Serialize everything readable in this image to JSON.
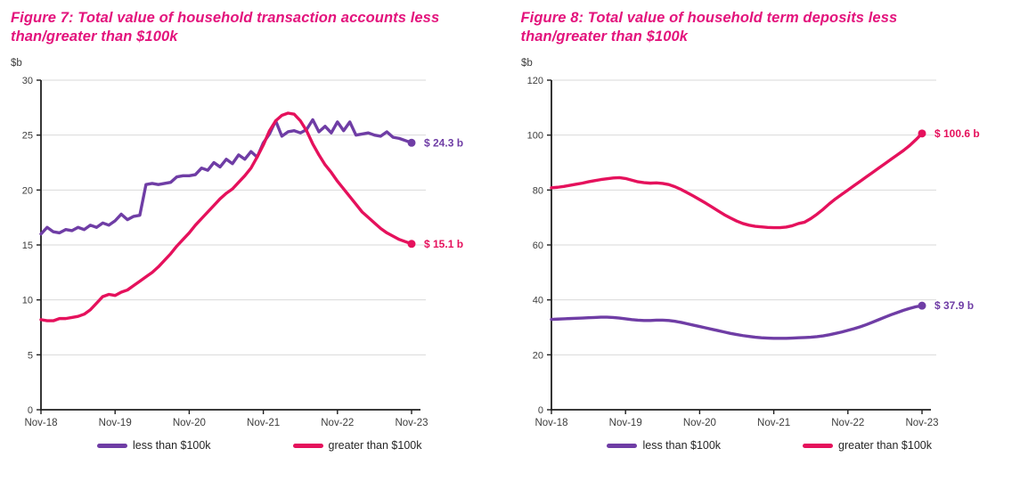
{
  "colors": {
    "title": "#e3137c",
    "axis": "#1f1f1f",
    "grid": "#d9d9d9",
    "tick_text": "#3d3d3d",
    "legend_text": "#262626",
    "background": "#ffffff"
  },
  "chart_data": [
    {
      "type": "line",
      "title": "Figure 7: Total value of household transaction accounts less than/greater than $100k",
      "y_unit": "$b",
      "ylim": [
        0,
        30
      ],
      "y_ticks": [
        0,
        5,
        10,
        15,
        20,
        25,
        30
      ],
      "x_tick_labels": [
        "Nov-18",
        "Nov-19",
        "Nov-20",
        "Nov-21",
        "Nov-22",
        "Nov-23"
      ],
      "x_frequency": "monthly",
      "x_points": 61,
      "grid": "horizontal",
      "legend_position": "bottom",
      "series": [
        {
          "name": "less than $100k",
          "color": "#6f3da5",
          "end_label": "$ 24.3 b",
          "end_value": 24.3,
          "values": [
            16.0,
            16.6,
            16.2,
            16.1,
            16.4,
            16.3,
            16.6,
            16.4,
            16.8,
            16.6,
            17.0,
            16.8,
            17.2,
            17.8,
            17.3,
            17.6,
            17.7,
            20.5,
            20.6,
            20.5,
            20.6,
            20.7,
            21.2,
            21.3,
            21.3,
            21.4,
            22.0,
            21.8,
            22.5,
            22.1,
            22.8,
            22.4,
            23.2,
            22.8,
            23.5,
            23.0,
            24.3,
            25.1,
            26.3,
            24.9,
            25.3,
            25.4,
            25.2,
            25.5,
            26.4,
            25.3,
            25.8,
            25.2,
            26.2,
            25.4,
            26.2,
            25.0,
            25.1,
            25.2,
            25.0,
            24.9,
            25.3,
            24.8,
            24.7,
            24.5,
            24.3
          ]
        },
        {
          "name": "greater than $100k",
          "color": "#e5115c",
          "end_label": "$ 15.1 b",
          "end_value": 15.1,
          "values": [
            8.2,
            8.1,
            8.1,
            8.3,
            8.3,
            8.4,
            8.5,
            8.7,
            9.1,
            9.7,
            10.3,
            10.5,
            10.4,
            10.7,
            10.9,
            11.3,
            11.7,
            12.1,
            12.5,
            13.0,
            13.6,
            14.2,
            14.9,
            15.5,
            16.1,
            16.8,
            17.4,
            18.0,
            18.6,
            19.2,
            19.7,
            20.1,
            20.7,
            21.3,
            22.0,
            23.0,
            24.1,
            25.4,
            26.3,
            26.8,
            27.0,
            26.9,
            26.3,
            25.4,
            24.2,
            23.2,
            22.3,
            21.6,
            20.8,
            20.1,
            19.4,
            18.7,
            18.0,
            17.5,
            17.0,
            16.5,
            16.1,
            15.8,
            15.5,
            15.3,
            15.1
          ]
        }
      ]
    },
    {
      "type": "line",
      "title": "Figure 8: Total value of household term deposits less than/greater than $100k",
      "y_unit": "$b",
      "ylim": [
        0,
        120
      ],
      "y_ticks": [
        0,
        20,
        40,
        60,
        80,
        100,
        120
      ],
      "x_tick_labels": [
        "Nov-18",
        "Nov-19",
        "Nov-20",
        "Nov-21",
        "Nov-22",
        "Nov-23"
      ],
      "x_frequency": "monthly",
      "x_points": 61,
      "grid": "horizontal",
      "legend_position": "bottom",
      "series": [
        {
          "name": "less than $100k",
          "color": "#6f3da5",
          "end_label": "$ 37.9 b",
          "end_value": 37.9,
          "values": [
            32.9,
            33.0,
            33.1,
            33.2,
            33.3,
            33.4,
            33.5,
            33.6,
            33.7,
            33.7,
            33.6,
            33.4,
            33.1,
            32.8,
            32.6,
            32.5,
            32.5,
            32.6,
            32.6,
            32.5,
            32.2,
            31.8,
            31.3,
            30.8,
            30.3,
            29.8,
            29.3,
            28.8,
            28.3,
            27.8,
            27.4,
            27.0,
            26.7,
            26.4,
            26.2,
            26.1,
            26.0,
            26.0,
            26.0,
            26.1,
            26.2,
            26.3,
            26.4,
            26.6,
            26.9,
            27.3,
            27.8,
            28.3,
            28.9,
            29.5,
            30.2,
            31.0,
            31.9,
            32.8,
            33.7,
            34.6,
            35.4,
            36.2,
            36.9,
            37.5,
            37.9
          ]
        },
        {
          "name": "greater than $100k",
          "color": "#e5115c",
          "end_label": "$ 100.6 b",
          "end_value": 100.6,
          "values": [
            80.8,
            81.0,
            81.3,
            81.7,
            82.1,
            82.5,
            83.0,
            83.4,
            83.8,
            84.1,
            84.4,
            84.5,
            84.2,
            83.6,
            83.0,
            82.7,
            82.5,
            82.6,
            82.4,
            82.0,
            81.2,
            80.2,
            79.0,
            77.8,
            76.5,
            75.2,
            73.8,
            72.4,
            71.0,
            69.8,
            68.7,
            67.8,
            67.2,
            66.8,
            66.6,
            66.4,
            66.3,
            66.3,
            66.5,
            67.0,
            67.8,
            68.3,
            69.6,
            71.2,
            73.0,
            75.0,
            76.8,
            78.4,
            80.0,
            81.6,
            83.2,
            84.8,
            86.4,
            88.0,
            89.6,
            91.2,
            92.8,
            94.4,
            96.2,
            98.3,
            100.6
          ]
        }
      ]
    }
  ]
}
